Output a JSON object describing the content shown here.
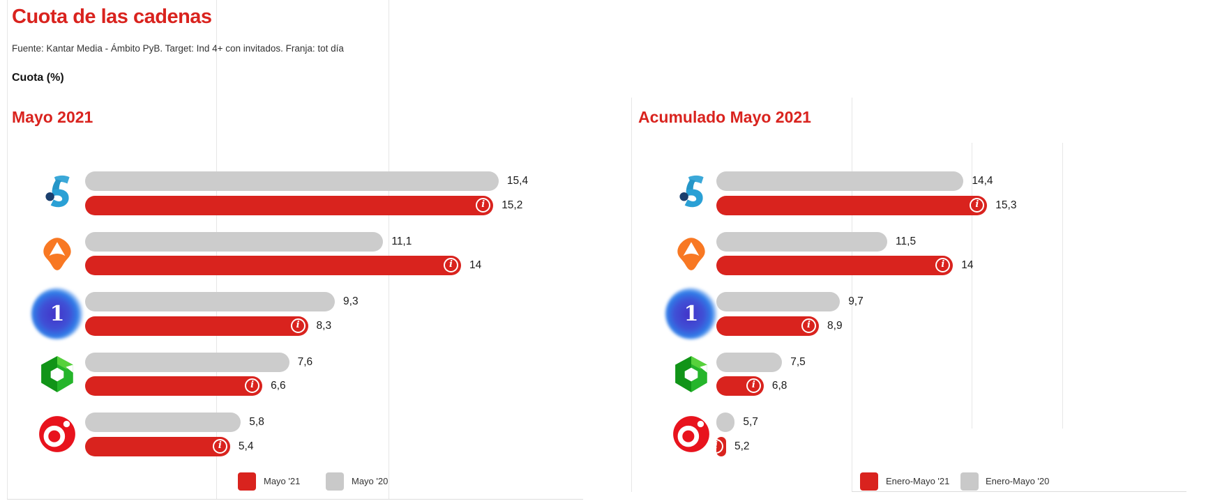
{
  "page": {
    "title": "Cuota de las cadenas",
    "source_line": "Fuente: Kantar Media - Ámbito PyB. Target: Ind 4+ con invitados. Franja: tot día",
    "unit_label": "Cuota (%)"
  },
  "colors": {
    "accent_red": "#d9231e",
    "bar_gray": "#cccccc",
    "label_text": "#1a1a1a"
  },
  "channels": [
    {
      "name": "Telecinco",
      "icon": "telecinco-logo"
    },
    {
      "name": "Antena 3",
      "icon": "antena3-logo"
    },
    {
      "name": "La 1",
      "icon": "la1-logo"
    },
    {
      "name": "laSexta",
      "icon": "lasexta-logo"
    },
    {
      "name": "Cuatro",
      "icon": "cuatro-logo"
    }
  ],
  "chart_data": [
    {
      "type": "bar",
      "title": "Mayo 2021",
      "orientation": "horizontal",
      "categories": [
        "Telecinco",
        "Antena 3",
        "La 1",
        "laSexta",
        "Cuatro"
      ],
      "series": [
        {
          "name": "Mayo '21",
          "color": "#d9231e",
          "values": [
            15.2,
            14,
            8.3,
            6.6,
            5.4
          ],
          "labels": [
            "15,2",
            "14",
            "8,3",
            "6,6",
            "5,4"
          ],
          "has_info_icon": true
        },
        {
          "name": "Mayo '20",
          "color": "#cccccc",
          "values": [
            15.4,
            11.1,
            9.3,
            7.6,
            5.8
          ],
          "labels": [
            "15,4",
            "11,1",
            "9,3",
            "7,6",
            "5,8"
          ],
          "has_info_icon": false
        }
      ],
      "x_axis": {
        "min": 0,
        "max": 15.5,
        "gridlines": true
      },
      "legend": [
        "Mayo '21",
        "Mayo '20"
      ],
      "legend_position": "bottom"
    },
    {
      "type": "bar",
      "title": "Acumulado Mayo 2021",
      "orientation": "horizontal",
      "categories": [
        "Telecinco",
        "Antena 3",
        "La 1",
        "laSexta",
        "Cuatro"
      ],
      "series": [
        {
          "name": "Enero-Mayo '21",
          "color": "#d9231e",
          "values": [
            15.3,
            14,
            8.9,
            6.8,
            5.2
          ],
          "labels": [
            "15,3",
            "14",
            "8,9",
            "6,8",
            "5,2"
          ],
          "has_info_icon": true
        },
        {
          "name": "Enero-Mayo '20",
          "color": "#cccccc",
          "values": [
            14.4,
            11.5,
            9.7,
            7.5,
            5.7
          ],
          "labels": [
            "14,4",
            "11,5",
            "9,7",
            "7,5",
            "5,7"
          ],
          "has_info_icon": false
        }
      ],
      "x_axis": {
        "min": 5,
        "max": 15.5,
        "gridlines": true
      },
      "legend": [
        "Enero-Mayo '21",
        "Enero-Mayo '20"
      ],
      "legend_position": "bottom"
    }
  ]
}
